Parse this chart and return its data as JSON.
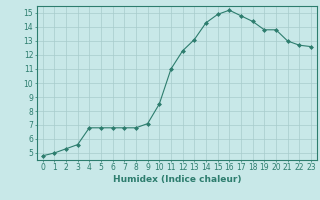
{
  "x": [
    0,
    1,
    2,
    3,
    4,
    5,
    6,
    7,
    8,
    9,
    10,
    11,
    12,
    13,
    14,
    15,
    16,
    17,
    18,
    19,
    20,
    21,
    22,
    23
  ],
  "y": [
    4.8,
    5.0,
    5.3,
    5.6,
    6.8,
    6.8,
    6.8,
    6.8,
    6.8,
    7.1,
    8.5,
    11.0,
    12.3,
    13.1,
    14.3,
    14.9,
    15.2,
    14.8,
    14.4,
    13.8,
    13.8,
    13.0,
    12.7,
    12.6
  ],
  "line_color": "#2d7d6e",
  "marker": "D",
  "marker_size": 2,
  "bg_color": "#c8e8e8",
  "grid_color": "#a8cccc",
  "xlabel": "Humidex (Indice chaleur)",
  "ylim": [
    4.5,
    15.5
  ],
  "xlim": [
    -0.5,
    23.5
  ],
  "yticks": [
    5,
    6,
    7,
    8,
    9,
    10,
    11,
    12,
    13,
    14,
    15
  ],
  "xticks": [
    0,
    1,
    2,
    3,
    4,
    5,
    6,
    7,
    8,
    9,
    10,
    11,
    12,
    13,
    14,
    15,
    16,
    17,
    18,
    19,
    20,
    21,
    22,
    23
  ],
  "tick_color": "#2d7d6e",
  "label_color": "#2d7d6e",
  "spine_color": "#2d7d6e",
  "tick_fontsize": 5.5,
  "xlabel_fontsize": 6.5
}
